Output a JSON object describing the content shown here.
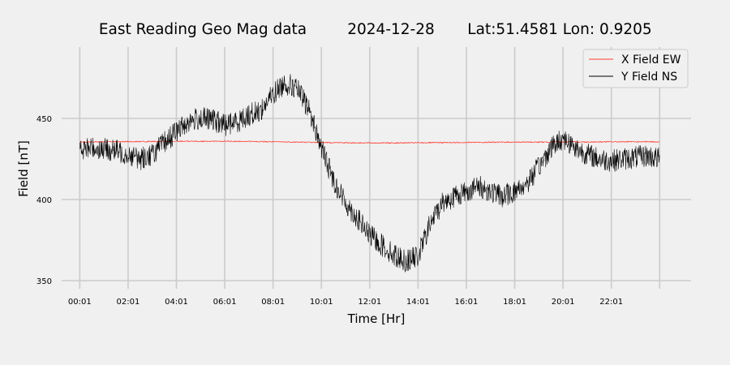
{
  "chart_data": {
    "type": "line",
    "title_parts": [
      "East Reading Geo Mag data",
      "2024-12-28",
      "Lat:51.4581  Lon: 0.9205"
    ],
    "xlabel": "Time  [Hr]",
    "ylabel": "Field  [nT]",
    "x_ticks": [
      "00:01",
      "02:01",
      "04:01",
      "06:01",
      "08:01",
      "10:01",
      "12:01",
      "14:01",
      "16:01",
      "18:01",
      "20:01",
      "22:01"
    ],
    "x_range_hours": [
      -0.75,
      25.3
    ],
    "y_ticks": [
      350,
      400,
      450
    ],
    "ylim": [
      348,
      494
    ],
    "grid": true,
    "legend_placement": "top-right",
    "series": [
      {
        "name": "X Field EW",
        "color": "#ff3b30",
        "x_hours": [
          0,
          1,
          2,
          3,
          4,
          5,
          6,
          7,
          8,
          9,
          10,
          11,
          12,
          13,
          14,
          15,
          16,
          17,
          18,
          19,
          20,
          21,
          22,
          23,
          24
        ],
        "values": [
          435.5,
          435.6,
          435.7,
          435.8,
          435.9,
          435.9,
          435.9,
          435.8,
          435.6,
          435.4,
          435.2,
          435.0,
          434.9,
          434.9,
          435.0,
          435.1,
          435.2,
          435.3,
          435.4,
          435.4,
          435.5,
          435.5,
          435.6,
          435.6,
          435.6
        ]
      },
      {
        "name": "Y Field NS",
        "color": "#000000",
        "x_hours": [
          0,
          0.5,
          1,
          1.5,
          2,
          2.5,
          3,
          3.5,
          4,
          4.5,
          5,
          5.5,
          6,
          6.5,
          7,
          7.5,
          8,
          8.5,
          9,
          9.5,
          10,
          10.5,
          11,
          11.5,
          12,
          12.5,
          13,
          13.5,
          14,
          14.5,
          15,
          15.5,
          16,
          16.5,
          17,
          17.5,
          18,
          18.5,
          19,
          19.5,
          20,
          20.5,
          21,
          21.5,
          22,
          22.5,
          23,
          23.5,
          24
        ],
        "values": [
          430,
          432,
          431,
          430,
          428,
          425,
          428,
          435,
          442,
          448,
          450,
          449,
          446,
          448,
          452,
          455,
          465,
          472,
          468,
          455,
          432,
          412,
          398,
          388,
          378,
          372,
          366,
          362,
          365,
          385,
          398,
          402,
          405,
          408,
          405,
          402,
          405,
          410,
          420,
          432,
          438,
          432,
          428,
          425,
          424,
          425,
          426,
          427,
          425
        ]
      }
    ]
  }
}
